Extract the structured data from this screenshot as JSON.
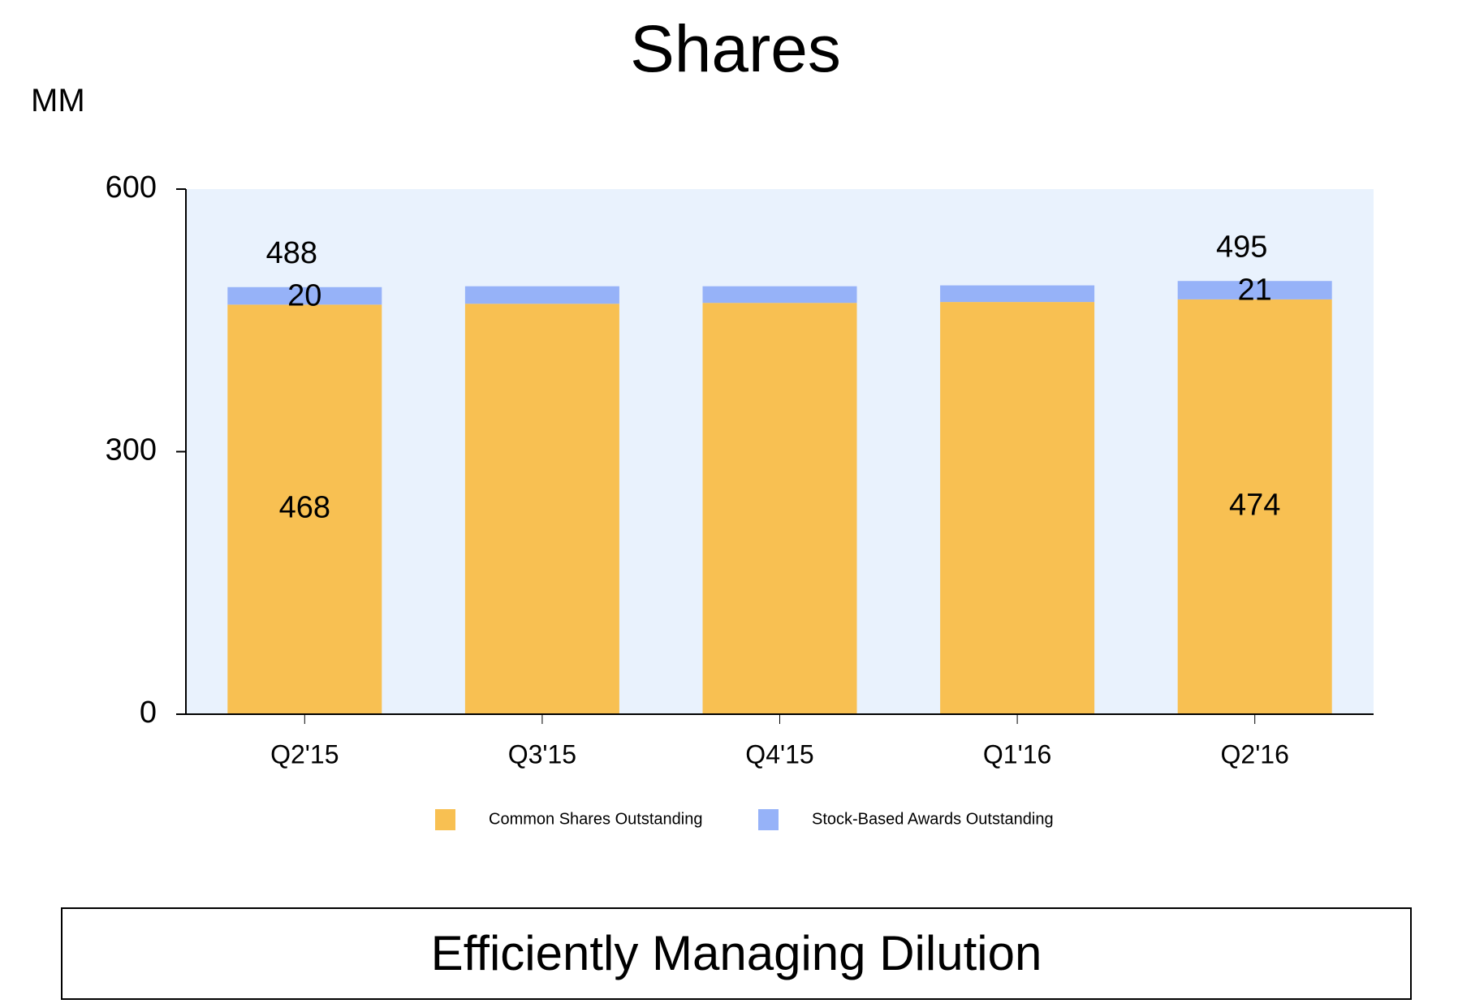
{
  "title": "Shares",
  "unit_label": "MM",
  "caption": "Efficiently Managing Dilution",
  "colors": {
    "plot_background": "#e9f2fd",
    "common": "#f8c052",
    "awards": "#96b2f8",
    "axis": "#000000"
  },
  "chart_data": {
    "type": "bar",
    "stacked": true,
    "categories": [
      "Q2'15",
      "Q3'15",
      "Q4'15",
      "Q1'16",
      "Q2'16"
    ],
    "series": [
      {
        "name": "Common Shares Outstanding",
        "values": [
          468,
          469,
          470,
          471,
          474
        ]
      },
      {
        "name": "Stock-Based Awards Outstanding",
        "values": [
          20,
          20,
          19,
          19,
          21
        ]
      }
    ],
    "segment_labels": [
      {
        "category": "Q2'15",
        "common": "468",
        "awards": "20",
        "total": "488"
      },
      {
        "category": "Q2'16",
        "common": "474",
        "awards": "21",
        "total": "495"
      }
    ],
    "yticks": [
      "0",
      "300",
      "600"
    ],
    "ylim": [
      0,
      600
    ],
    "legend_position": "bottom",
    "grid": false
  }
}
